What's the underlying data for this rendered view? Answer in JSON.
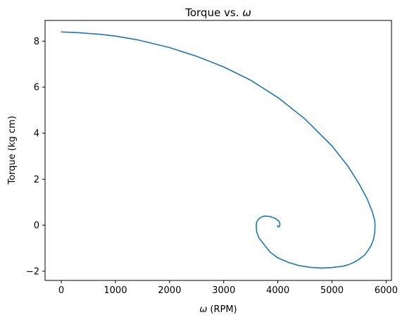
{
  "chart_data": {
    "type": "line",
    "title": "Torque vs. ω",
    "title_prefix": "Torque vs. ",
    "title_symbol": "ω",
    "xlabel_symbol": "ω",
    "xlabel_rest": " (RPM)",
    "ylabel": "Torque (kg cm)",
    "xlim": [
      -300,
      6100
    ],
    "ylim": [
      -2.4,
      8.9
    ],
    "xticks": [
      0,
      1000,
      2000,
      3000,
      4000,
      5000,
      6000
    ],
    "xtick_labels": [
      "0",
      "1000",
      "2000",
      "3000",
      "4000",
      "5000",
      "6000"
    ],
    "yticks": [
      -2,
      0,
      2,
      4,
      6,
      8
    ],
    "ytick_labels": [
      "−2",
      "0",
      "2",
      "4",
      "6",
      "8"
    ],
    "grid": false,
    "series": [
      {
        "name": "torque",
        "color": "#1f77b4",
        "x": [
          0,
          300,
          700,
          1000,
          1400,
          2000,
          2500,
          3000,
          3500,
          4000,
          4500,
          5000,
          5300,
          5500,
          5650,
          5750,
          5790,
          5795,
          5790,
          5770,
          5720,
          5650,
          5600,
          5500,
          5400,
          5300,
          5200,
          5000,
          4800,
          4600,
          4400,
          4200,
          4000,
          3850,
          3750,
          3650,
          3610,
          3600,
          3610,
          3650,
          3700,
          3750,
          3850,
          3950,
          4020,
          4040,
          4030,
          4010,
          3990
        ],
        "y": [
          8.4,
          8.37,
          8.3,
          8.22,
          8.06,
          7.72,
          7.34,
          6.88,
          6.3,
          5.55,
          4.62,
          3.45,
          2.55,
          1.8,
          1.15,
          0.55,
          0.2,
          0.0,
          -0.3,
          -0.6,
          -0.9,
          -1.15,
          -1.3,
          -1.48,
          -1.62,
          -1.72,
          -1.78,
          -1.84,
          -1.86,
          -1.83,
          -1.76,
          -1.62,
          -1.42,
          -1.15,
          -0.85,
          -0.55,
          -0.3,
          -0.05,
          0.15,
          0.28,
          0.36,
          0.4,
          0.38,
          0.3,
          0.18,
          0.05,
          -0.05,
          -0.08,
          -0.02
        ]
      }
    ]
  }
}
